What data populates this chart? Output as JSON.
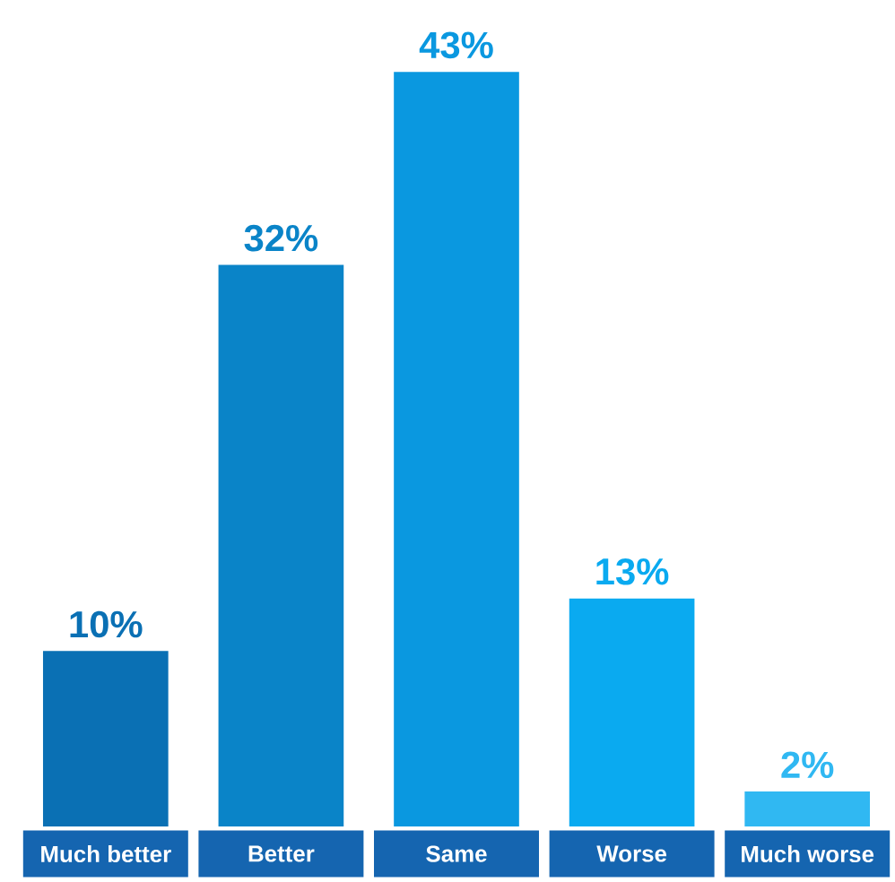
{
  "chart_data": {
    "type": "bar",
    "categories": [
      "Much better",
      "Better",
      "Same",
      "Worse",
      "Much worse"
    ],
    "values": [
      10,
      32,
      43,
      13,
      2
    ],
    "value_labels": [
      "10%",
      "32%",
      "43%",
      "13%",
      "2%"
    ],
    "colors": [
      "#0a70b4",
      "#0a84c8",
      "#0a98e0",
      "#0aaaf0",
      "#30b8f2"
    ]
  }
}
